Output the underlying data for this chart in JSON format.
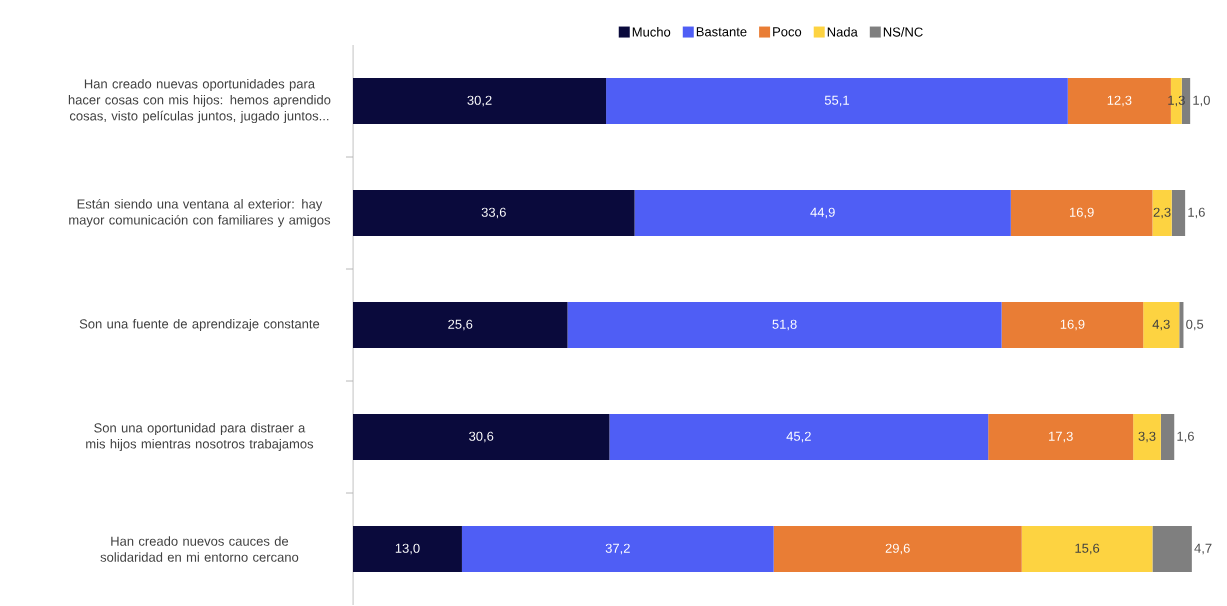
{
  "chart_data": {
    "type": "bar",
    "orientation": "horizontal",
    "stacked": true,
    "legend": "top",
    "tick_labels": "y",
    "xlim": [
      0,
      100
    ],
    "categories": [
      "Han creado nuevas oportunidades para hacer cosas con mis hijos: hemos aprendido cosas, visto películas juntos, jugado juntos...",
      "Están siendo una ventana al exterior: hay mayor comunicación con familiares y amigos",
      "Son una fuente de aprendizaje constante",
      "Son una oportunidad para distraer a mis hijos mientras nosotros trabajamos",
      "Han creado nuevos cauces de solidaridad en mi entorno cercano"
    ],
    "series": [
      {
        "name": "Mucho",
        "color": "#0a0a3c",
        "values": [
          30.2,
          33.6,
          25.6,
          30.6,
          13.0
        ],
        "value_labels": [
          "30,2",
          "33,6",
          "25,6",
          "30,6",
          "13,0"
        ]
      },
      {
        "name": "Bastante",
        "color": "#4f5ef5",
        "values": [
          55.1,
          44.9,
          51.8,
          45.2,
          37.2
        ],
        "value_labels": [
          "55,1",
          "44,9",
          "51,8",
          "45,2",
          "37,2"
        ]
      },
      {
        "name": "Poco",
        "color": "#e97d35",
        "values": [
          12.3,
          16.9,
          16.9,
          17.3,
          29.6
        ],
        "value_labels": [
          "12,3",
          "16,9",
          "16,9",
          "17,3",
          "29,6"
        ]
      },
      {
        "name": "Nada",
        "color": "#fdd341",
        "values": [
          1.3,
          2.3,
          4.3,
          3.3,
          15.6
        ],
        "value_labels": [
          "1,3",
          "2,3",
          "4,3",
          "3,3",
          "15,6"
        ]
      },
      {
        "name": "NS/NC",
        "color": "#7f7f7f",
        "values": [
          1.0,
          1.6,
          0.5,
          1.6,
          4.7
        ],
        "value_labels": [
          "1,0",
          "1,6",
          "0,5",
          "1,6",
          "4,7"
        ]
      }
    ]
  }
}
